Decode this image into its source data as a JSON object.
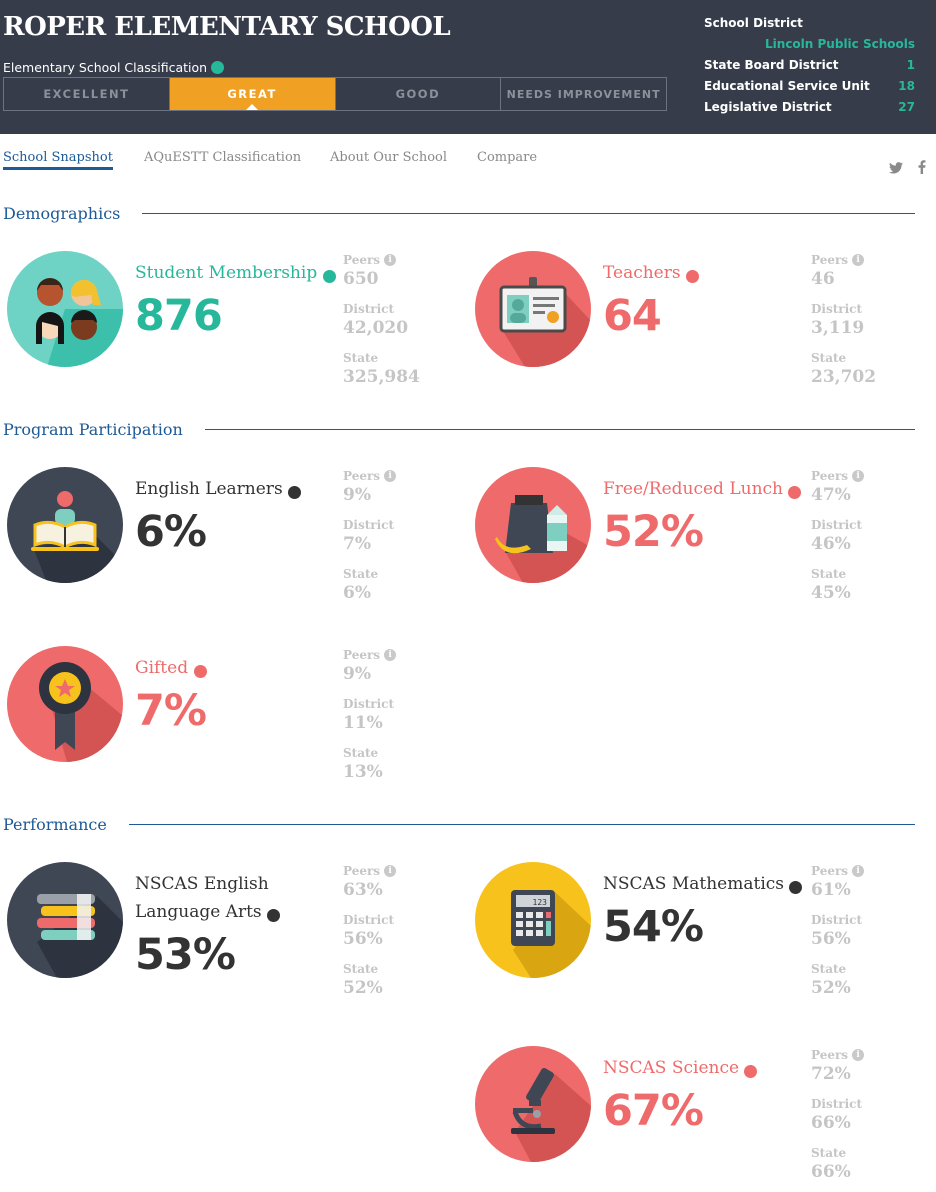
{
  "header": {
    "school_name": "ROPER ELEMENTARY SCHOOL",
    "classification_label": "Elementary School Classification",
    "classifications": [
      {
        "label": "EXCELLENT",
        "active": false
      },
      {
        "label": "GREAT",
        "active": true
      },
      {
        "label": "GOOD",
        "active": false
      },
      {
        "label": "NEEDS IMPROVEMENT",
        "active": false
      }
    ],
    "district": {
      "school_district_label": "School District",
      "school_district_value": "Lincoln Public Schools",
      "state_board_label": "State Board District",
      "state_board_value": "1",
      "esu_label": "Educational Service Unit",
      "esu_value": "18",
      "legislative_label": "Legislative District",
      "legislative_value": "27"
    }
  },
  "nav": {
    "tabs": [
      "School Snapshot",
      "AQuESTT Classification",
      "About Our School",
      "Compare"
    ],
    "social": [
      "twitter-icon",
      "facebook-icon"
    ]
  },
  "sections": {
    "demographics": "Demographics",
    "program": "Program Participation",
    "performance": "Performance"
  },
  "labels": {
    "peers": "Peers",
    "district": "District",
    "state": "State"
  },
  "stats": {
    "membership": {
      "label": "Student Membership",
      "value": "876",
      "peers": "650",
      "district": "42,020",
      "state": "325,984"
    },
    "teachers": {
      "label": "Teachers",
      "value": "64",
      "peers": "46",
      "district": "3,119",
      "state": "23,702"
    },
    "ell": {
      "label": "English Learners",
      "value": "6%",
      "peers": "9%",
      "district": "7%",
      "state": "6%"
    },
    "lunch": {
      "label": "Free/Reduced Lunch",
      "value": "52%",
      "peers": "47%",
      "district": "46%",
      "state": "45%"
    },
    "gifted": {
      "label": "Gifted",
      "value": "7%",
      "peers": "9%",
      "district": "11%",
      "state": "13%"
    },
    "ela": {
      "label_line1": "NSCAS English",
      "label_line2": "Language Arts",
      "value": "53%",
      "peers": "63%",
      "district": "56%",
      "state": "52%"
    },
    "math": {
      "label": "NSCAS Mathematics",
      "value": "54%",
      "peers": "61%",
      "district": "56%",
      "state": "52%"
    },
    "science": {
      "label": "NSCAS Science",
      "value": "67%",
      "peers": "72%",
      "district": "66%",
      "state": "66%"
    }
  },
  "calculator_display": "123",
  "colors": {
    "header_bg": "#363c4a",
    "accent_teal": "#27b79a",
    "accent_coral": "#ef6a6a",
    "accent_orange": "#f0a022",
    "navy": "#1d5a96",
    "yellow": "#f7c21c"
  }
}
